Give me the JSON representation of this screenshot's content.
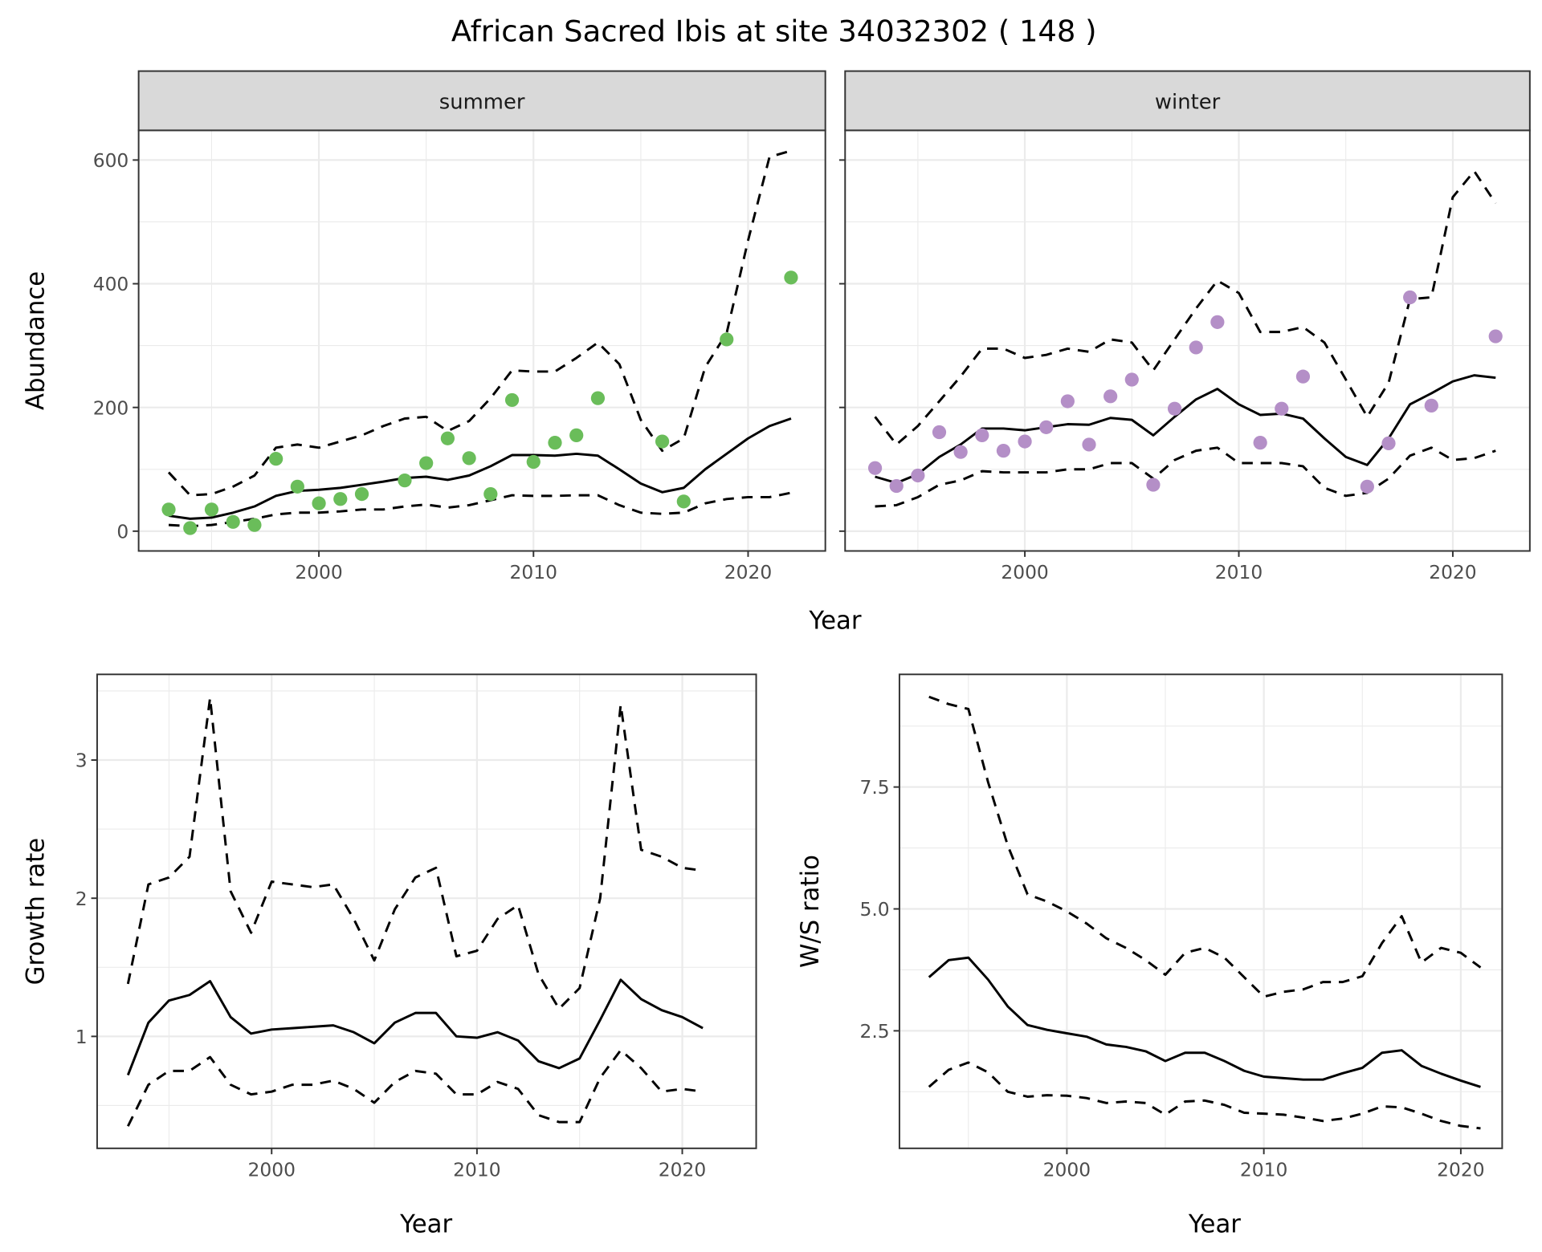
{
  "title": "African Sacred Ibis at site 34032302 ( 148 )",
  "colors": {
    "summer_points": "#6abd5a",
    "winter_points": "#b48fc7",
    "line": "#000000"
  },
  "chart_data": [
    {
      "type": "line",
      "panel": "summer",
      "strip_label": "summer",
      "xlabel": "Year",
      "ylabel": "Abundance",
      "xlim": [
        1991.6,
        2023.6
      ],
      "ylim": [
        -32,
        648
      ],
      "xticks": [
        2000,
        2010,
        2020
      ],
      "yticks": [
        0,
        200,
        400,
        600
      ],
      "x": [
        1993,
        1994,
        1995,
        1996,
        1997,
        1998,
        1999,
        2000,
        2001,
        2002,
        2003,
        2004,
        2005,
        2006,
        2007,
        2008,
        2009,
        2010,
        2011,
        2012,
        2013,
        2014,
        2015,
        2016,
        2017,
        2018,
        2019,
        2020,
        2021,
        2022
      ],
      "series": [
        {
          "name": "mean",
          "style": "solid",
          "values": [
            25,
            20,
            22,
            30,
            40,
            57,
            65,
            67,
            70,
            75,
            80,
            86,
            88,
            83,
            90,
            105,
            123,
            123,
            122,
            125,
            122,
            100,
            77,
            63,
            70,
            100,
            125,
            150,
            170,
            182
          ]
        },
        {
          "name": "upper",
          "style": "dashed",
          "values": [
            95,
            58,
            60,
            72,
            90,
            135,
            140,
            135,
            145,
            155,
            170,
            182,
            185,
            162,
            178,
            215,
            260,
            258,
            258,
            280,
            305,
            270,
            180,
            130,
            150,
            265,
            320,
            470,
            605,
            615
          ]
        },
        {
          "name": "lower",
          "style": "dashed",
          "values": [
            10,
            8,
            10,
            15,
            20,
            27,
            30,
            30,
            32,
            35,
            35,
            40,
            43,
            38,
            42,
            50,
            58,
            57,
            57,
            58,
            58,
            42,
            30,
            28,
            30,
            45,
            52,
            55,
            55,
            62
          ]
        },
        {
          "name": "counts",
          "style": "points",
          "values": [
            35,
            5,
            35,
            15,
            10,
            117,
            72,
            45,
            52,
            60,
            null,
            82,
            110,
            150,
            118,
            60,
            212,
            112,
            143,
            155,
            215,
            null,
            null,
            145,
            48,
            null,
            310,
            null,
            null,
            410
          ]
        }
      ]
    },
    {
      "type": "line",
      "panel": "winter",
      "strip_label": "winter",
      "xlabel": "Year",
      "ylabel": "Abundance",
      "xlim": [
        1991.6,
        2023.6
      ],
      "ylim": [
        -32,
        648
      ],
      "xticks": [
        2000,
        2010,
        2020
      ],
      "yticks": [
        0,
        200,
        400,
        600
      ],
      "x": [
        1993,
        1994,
        1995,
        1996,
        1997,
        1998,
        1999,
        2000,
        2001,
        2002,
        2003,
        2004,
        2005,
        2006,
        2007,
        2008,
        2009,
        2010,
        2011,
        2012,
        2013,
        2014,
        2015,
        2016,
        2017,
        2018,
        2019,
        2020,
        2021,
        2022
      ],
      "series": [
        {
          "name": "mean",
          "style": "solid",
          "values": [
            88,
            78,
            92,
            120,
            140,
            166,
            166,
            163,
            168,
            173,
            172,
            183,
            180,
            155,
            185,
            213,
            230,
            205,
            188,
            190,
            182,
            150,
            120,
            107,
            150,
            205,
            223,
            242,
            252,
            248
          ]
        },
        {
          "name": "upper",
          "style": "dashed",
          "values": [
            185,
            140,
            170,
            210,
            250,
            295,
            295,
            280,
            285,
            295,
            290,
            310,
            305,
            260,
            310,
            360,
            405,
            385,
            322,
            322,
            330,
            305,
            245,
            185,
            240,
            375,
            378,
            540,
            582,
            530
          ]
        },
        {
          "name": "lower",
          "style": "dashed",
          "values": [
            40,
            42,
            55,
            75,
            82,
            97,
            95,
            95,
            95,
            100,
            100,
            110,
            110,
            85,
            115,
            130,
            135,
            110,
            110,
            110,
            105,
            70,
            57,
            62,
            85,
            122,
            135,
            115,
            118,
            130
          ]
        },
        {
          "name": "counts",
          "style": "points",
          "values": [
            102,
            73,
            90,
            160,
            128,
            155,
            130,
            145,
            168,
            210,
            140,
            218,
            245,
            75,
            198,
            297,
            338,
            null,
            143,
            198,
            250,
            null,
            null,
            72,
            142,
            378,
            203,
            null,
            null,
            315
          ]
        }
      ]
    },
    {
      "type": "line",
      "panel": "growth",
      "xlabel": "Year",
      "ylabel": "Growth rate",
      "xlim": [
        1991.5,
        2023.6
      ],
      "ylim": [
        0.19,
        3.62
      ],
      "xticks": [
        2000,
        2010,
        2020
      ],
      "yticks": [
        1,
        2,
        3
      ],
      "x": [
        1993,
        1994,
        1995,
        1996,
        1997,
        1998,
        1999,
        2000,
        2001,
        2002,
        2003,
        2004,
        2005,
        2006,
        2007,
        2008,
        2009,
        2010,
        2011,
        2012,
        2013,
        2014,
        2015,
        2016,
        2017,
        2018,
        2019,
        2020,
        2021
      ],
      "series": [
        {
          "name": "mean",
          "style": "solid",
          "values": [
            0.72,
            1.1,
            1.26,
            1.3,
            1.4,
            1.14,
            1.02,
            1.05,
            1.06,
            1.07,
            1.08,
            1.03,
            0.95,
            1.1,
            1.17,
            1.17,
            1.0,
            0.99,
            1.03,
            0.97,
            0.82,
            0.77,
            0.84,
            1.12,
            1.41,
            1.27,
            1.19,
            1.14,
            1.06
          ]
        },
        {
          "name": "upper",
          "style": "dashed",
          "values": [
            1.38,
            2.1,
            2.15,
            2.3,
            3.45,
            2.05,
            1.75,
            2.12,
            2.1,
            2.08,
            2.1,
            1.85,
            1.55,
            1.92,
            2.15,
            2.22,
            1.58,
            1.62,
            1.85,
            1.95,
            1.45,
            1.2,
            1.35,
            2.0,
            3.4,
            2.35,
            2.3,
            2.22,
            2.2
          ]
        },
        {
          "name": "lower",
          "style": "dashed",
          "values": [
            0.35,
            0.65,
            0.75,
            0.75,
            0.85,
            0.65,
            0.58,
            0.6,
            0.65,
            0.65,
            0.68,
            0.62,
            0.52,
            0.67,
            0.75,
            0.73,
            0.58,
            0.58,
            0.67,
            0.62,
            0.43,
            0.38,
            0.38,
            0.7,
            0.9,
            0.77,
            0.6,
            0.62,
            0.6
          ]
        }
      ]
    },
    {
      "type": "line",
      "panel": "ratio",
      "xlabel": "Year",
      "ylabel": "W/S ratio",
      "xlim": [
        1991.5,
        2022.1
      ],
      "ylim": [
        0.09,
        9.81
      ],
      "xticks": [
        2000,
        2010,
        2020
      ],
      "yticks": [
        2.5,
        5.0,
        7.5
      ],
      "ytick_labels": [
        "2.5",
        "5.0",
        "7.5"
      ],
      "x": [
        1993,
        1994,
        1995,
        1996,
        1997,
        1998,
        1999,
        2000,
        2001,
        2002,
        2003,
        2004,
        2005,
        2006,
        2007,
        2008,
        2009,
        2010,
        2011,
        2012,
        2013,
        2014,
        2015,
        2016,
        2017,
        2018,
        2019,
        2020,
        2021
      ],
      "series": [
        {
          "name": "mean",
          "style": "solid",
          "values": [
            3.6,
            3.95,
            4.0,
            3.55,
            3.0,
            2.62,
            2.52,
            2.45,
            2.38,
            2.22,
            2.17,
            2.08,
            1.88,
            2.05,
            2.05,
            1.88,
            1.68,
            1.56,
            1.53,
            1.5,
            1.5,
            1.63,
            1.74,
            2.05,
            2.1,
            1.78,
            1.62,
            1.48,
            1.35
          ]
        },
        {
          "name": "upper",
          "style": "dashed",
          "values": [
            9.35,
            9.2,
            9.1,
            7.6,
            6.3,
            5.3,
            5.15,
            4.95,
            4.7,
            4.4,
            4.2,
            3.95,
            3.65,
            4.1,
            4.2,
            4.0,
            3.6,
            3.2,
            3.3,
            3.35,
            3.5,
            3.5,
            3.62,
            4.3,
            4.85,
            3.9,
            4.2,
            4.1,
            3.8
          ]
        },
        {
          "name": "lower",
          "style": "dashed",
          "values": [
            1.35,
            1.7,
            1.85,
            1.65,
            1.25,
            1.15,
            1.18,
            1.17,
            1.12,
            1.02,
            1.05,
            1.02,
            0.78,
            1.05,
            1.07,
            0.98,
            0.82,
            0.8,
            0.78,
            0.72,
            0.65,
            0.7,
            0.8,
            0.95,
            0.93,
            0.8,
            0.65,
            0.55,
            0.5
          ]
        }
      ]
    }
  ]
}
